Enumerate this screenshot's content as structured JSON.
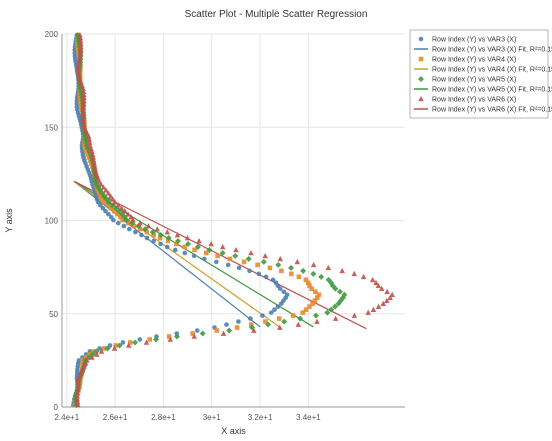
{
  "chart_data": {
    "type": "scatter",
    "title": "Scatter  Plot - Multiple Scatter Regression",
    "xlabel": "X axis",
    "ylabel": "Y axis",
    "xlim": [
      2.38,
      3.8
    ],
    "ylim": [
      0,
      200
    ],
    "x_ticks": [
      {
        "value": 2.4,
        "label": "2.4e+1"
      },
      {
        "value": 2.6,
        "label": "2.6e+1"
      },
      {
        "value": 2.8,
        "label": "2.8e+1"
      },
      {
        "value": 3.0,
        "label": "3e+1"
      },
      {
        "value": 3.2,
        "label": "3.2e+1"
      },
      {
        "value": 3.4,
        "label": "3.4e+1"
      }
    ],
    "y_ticks": [
      {
        "value": 0,
        "label": "0"
      },
      {
        "value": 50,
        "label": "50"
      },
      {
        "value": 100,
        "label": "100"
      },
      {
        "value": 150,
        "label": "150"
      },
      {
        "value": 200,
        "label": "200"
      }
    ],
    "grid": true,
    "legend_position": "top-right",
    "legend": [
      {
        "label": "Row Index (Y) vs VAR3 (X)",
        "marker": "circle",
        "color": "#4a7fb0"
      },
      {
        "label": "Row Index (Y) vs VAR3 (X) Fit, R²=0.15",
        "marker": "line",
        "color": "#4a7fb0"
      },
      {
        "label": "Row Index (Y) vs VAR4 (X)",
        "marker": "square",
        "color": "#e8892b"
      },
      {
        "label": "Row Index (Y) vs VAR4 (X) Fit, R²=0.15",
        "marker": "line",
        "color": "#c9a227"
      },
      {
        "label": "Row Index (Y) vs VAR5 (X)",
        "marker": "diamond",
        "color": "#3e9a3e"
      },
      {
        "label": "Row Index (Y) vs VAR5 (X) Fit, R²=0.15",
        "marker": "line",
        "color": "#3e9a3e"
      },
      {
        "label": "Row Index (Y) vs VAR6 (X)",
        "marker": "triangle",
        "color": "#c0504d"
      },
      {
        "label": "Row Index (Y) vs VAR6 (X) Fit, R²=0.15",
        "marker": "line",
        "color": "#c0504d"
      }
    ],
    "curve_shape": {
      "y": [
        0,
        5,
        10,
        15,
        20,
        25,
        30,
        34,
        38,
        42,
        46,
        50,
        55,
        60,
        64,
        68,
        72,
        76,
        80,
        85,
        90,
        95,
        98,
        102,
        106,
        110,
        115,
        120,
        125,
        130,
        135,
        140,
        145,
        150,
        160,
        170,
        180,
        190,
        200
      ],
      "x_offset": [
        0,
        0,
        0.01,
        0.01,
        0.02,
        0.03,
        0.08,
        0.2,
        0.4,
        0.65,
        0.8,
        0.95,
        1.0,
        0.98,
        0.9,
        0.85,
        0.75,
        0.62,
        0.48,
        0.35,
        0.27,
        0.22,
        0.2,
        0.18,
        0.15,
        0.12,
        0.1,
        0.08,
        0.07,
        0.06,
        0.05,
        0.04,
        0.04,
        0.03,
        0.02,
        0.02,
        0.01,
        0.01,
        0.01
      ]
    },
    "series": [
      {
        "name": "Row Index (Y) vs VAR3 (X)",
        "marker": "circle",
        "color": "#4a7fb0",
        "x_base": 2.43,
        "x_span": 0.86,
        "x_bulge": 0.33
      },
      {
        "name": "Row Index (Y) vs VAR4 (X)",
        "marker": "square",
        "color": "#e8892b",
        "x_base": 2.44,
        "x_span": 0.98,
        "x_bulge": 0.42
      },
      {
        "name": "Row Index (Y) vs VAR5 (X)",
        "marker": "diamond",
        "color": "#3e9a3e",
        "x_base": 2.44,
        "x_span": 1.08,
        "x_bulge": 0.48
      },
      {
        "name": "Row Index (Y) vs VAR6 (X)",
        "marker": "triangle",
        "color": "#c0504d",
        "x_base": 2.44,
        "x_span": 1.26,
        "x_bulge": 0.6
      }
    ],
    "fit_lines": [
      {
        "name": "Row Index (Y) vs VAR3 (X) Fit, R²=0.15",
        "color": "#4a7fb0",
        "x": [
          2.43,
          3.2
        ],
        "y": [
          121,
          43
        ]
      },
      {
        "name": "Row Index (Y) vs VAR4 (X) Fit, R²=0.15",
        "color": "#c9a227",
        "x": [
          2.43,
          3.28
        ],
        "y": [
          121,
          43
        ]
      },
      {
        "name": "Row Index (Y) vs VAR5 (X) Fit, R²=0.15",
        "color": "#3e9a3e",
        "x": [
          2.43,
          3.42
        ],
        "y": [
          121,
          43
        ]
      },
      {
        "name": "Row Index (Y) vs VAR6 (X) Fit, R²=0.15",
        "color": "#c0504d",
        "x": [
          2.43,
          3.64
        ],
        "y": [
          121,
          42
        ]
      }
    ]
  }
}
